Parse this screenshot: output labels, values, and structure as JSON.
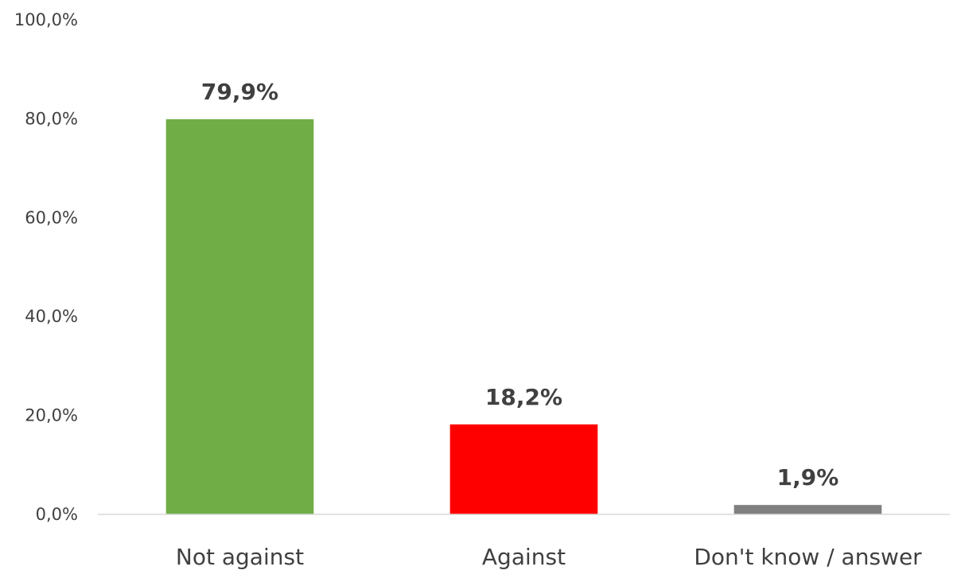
{
  "chart_data": {
    "type": "bar",
    "title": "",
    "xlabel": "",
    "ylabel": "",
    "categories": [
      "Not against",
      "Against",
      "Don't know / answer"
    ],
    "values": [
      79.9,
      18.2,
      1.9
    ],
    "value_labels": [
      "79,9%",
      "18,2%",
      "1,9%"
    ],
    "bar_colors": [
      "#70AD47",
      "#FF0000",
      "#808080"
    ],
    "ylim": [
      0,
      100
    ],
    "yticks": [
      0,
      20,
      40,
      60,
      80,
      100
    ],
    "ytick_labels": [
      "0,0%",
      "20,0%",
      "40,0%",
      "60,0%",
      "80,0%",
      "100,0%"
    ],
    "grid": false,
    "legend": "none"
  }
}
